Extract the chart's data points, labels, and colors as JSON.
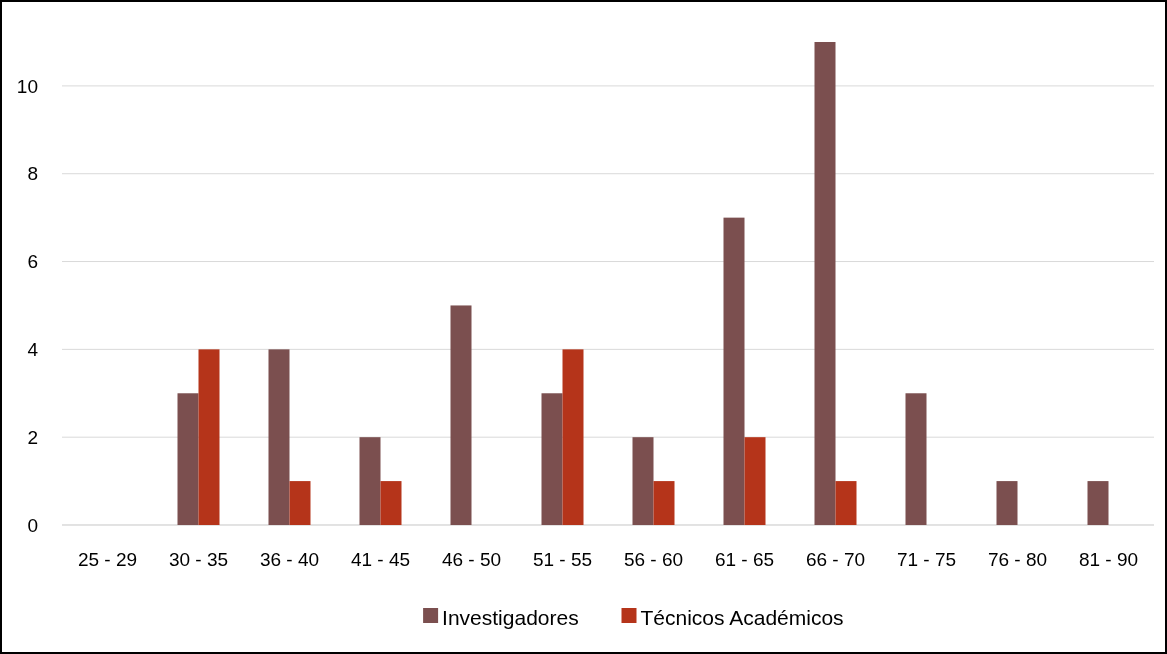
{
  "chart_data": {
    "type": "bar",
    "categories": [
      "25 - 29",
      "30 - 35",
      "36 - 40",
      "41 - 45",
      "46 - 50",
      "51 - 55",
      "56 - 60",
      "61 - 65",
      "66 - 70",
      "71 - 75",
      "76 - 80",
      "81 - 90"
    ],
    "series": [
      {
        "name": "Investigadores",
        "color": "#7b4f4f",
        "values": [
          0,
          3,
          4,
          2,
          5,
          3,
          2,
          7,
          11,
          3,
          1,
          1
        ]
      },
      {
        "name": "Técnicos Académicos",
        "color": "#b5341a",
        "values": [
          0,
          4,
          1,
          1,
          0,
          4,
          1,
          2,
          1,
          0,
          0,
          0
        ]
      }
    ],
    "ylim": [
      0,
      11
    ],
    "yticks": [
      0,
      2,
      4,
      6,
      8,
      10
    ],
    "grid": "y",
    "legend": "bottom"
  }
}
